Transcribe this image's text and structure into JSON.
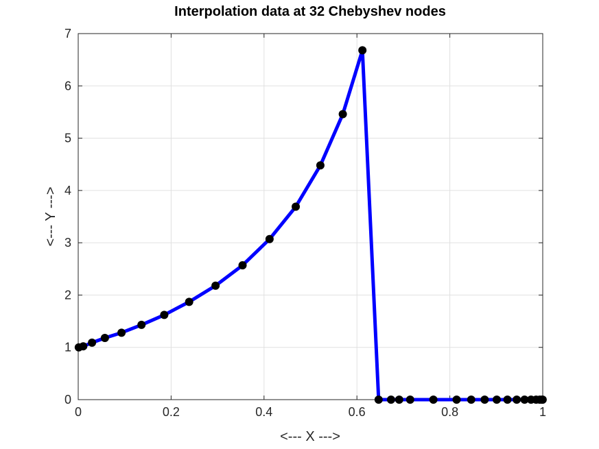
{
  "chart_data": {
    "type": "line",
    "title": "Interpolation data at 32 Chebyshev nodes",
    "xlabel": "<--- X --->",
    "ylabel": "<--- Y --->",
    "xlim": [
      0,
      1
    ],
    "ylim": [
      0,
      7
    ],
    "xticks": [
      0,
      0.2,
      0.4,
      0.6,
      0.8,
      1
    ],
    "xtick_labels": [
      "0",
      "0.2",
      "0.4",
      "0.6",
      "0.8",
      "1"
    ],
    "yticks": [
      0,
      1,
      2,
      3,
      4,
      5,
      6,
      7
    ],
    "ytick_labels": [
      "0",
      "1",
      "2",
      "3",
      "4",
      "5",
      "6",
      "7"
    ],
    "grid": true,
    "line_color": "#0000ff",
    "marker_color": "#000000",
    "grid_color": "#e0e0e0",
    "series": [
      {
        "x": [
          0.0012,
          0.0108,
          0.0297,
          0.0574,
          0.0932,
          0.1362,
          0.1852,
          0.2388,
          0.2956,
          0.3538,
          0.4119,
          0.4683,
          0.5213,
          0.5696,
          0.6118,
          0.6467,
          0.6734,
          0.691,
          0.7146,
          0.7646,
          0.8146,
          0.846,
          0.875,
          0.901,
          0.924,
          0.944,
          0.9609,
          0.9748,
          0.9857,
          0.9936,
          0.9984,
          0.9998
        ],
        "y": [
          1.0,
          1.02,
          1.09,
          1.18,
          1.28,
          1.43,
          1.62,
          1.87,
          2.18,
          2.57,
          3.07,
          3.69,
          4.48,
          5.46,
          6.68,
          0,
          0,
          0,
          0,
          0,
          0,
          0,
          0,
          0,
          0,
          0,
          0,
          0,
          0,
          0,
          0,
          0
        ]
      }
    ]
  }
}
